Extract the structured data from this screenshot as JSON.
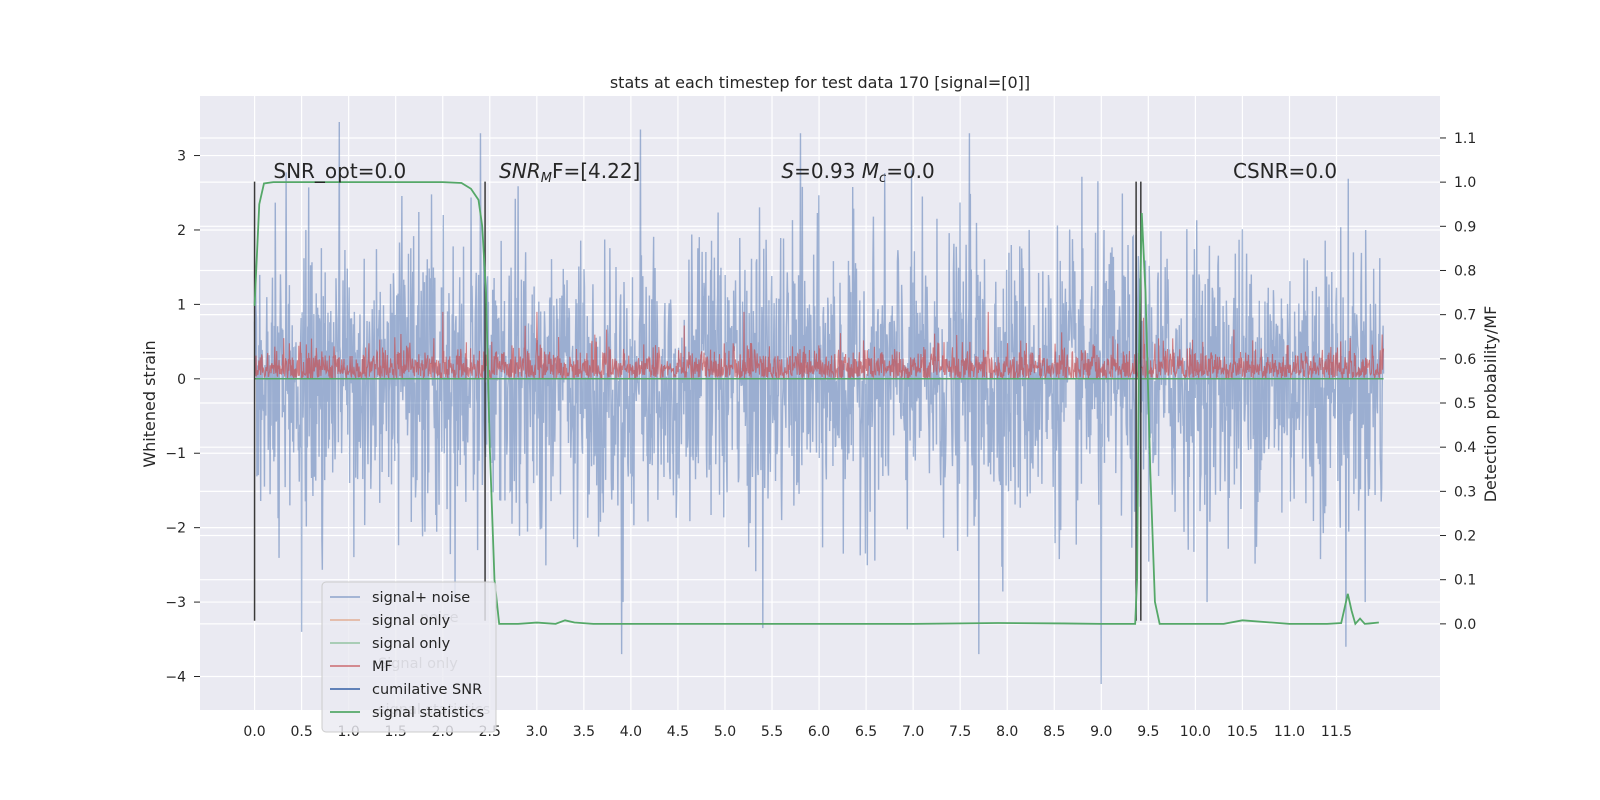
{
  "chart_data": {
    "type": "line",
    "title": "stats at each timestep for test data 170 [signal=[0]]",
    "xlabel": "",
    "ylabel": "Whitened strain",
    "y2label": "Detection probability/MF",
    "xlim": [
      -0.58,
      12.6
    ],
    "ylim": [
      -4.45,
      3.8
    ],
    "y2lim": [
      -0.195,
      1.195
    ],
    "x_ticks": [
      "0.0",
      "0.5",
      "1.0",
      "1.5",
      "2.0",
      "2.5",
      "3.0",
      "3.5",
      "4.0",
      "4.5",
      "5.0",
      "5.5",
      "6.0",
      "6.5",
      "7.0",
      "7.5",
      "8.0",
      "8.5",
      "9.0",
      "9.5",
      "10.0",
      "10.5",
      "11.0",
      "11.5"
    ],
    "y_ticks": [
      "3",
      "2",
      "1",
      "0",
      "−1",
      "−2",
      "−3",
      "−4"
    ],
    "y2_ticks": [
      "1.1",
      "1.0",
      "0.9",
      "0.8",
      "0.7",
      "0.6",
      "0.5",
      "0.4",
      "0.3",
      "0.2",
      "0.1",
      "0.0"
    ],
    "grid": true,
    "legend_position": "lower-left",
    "annotations": [
      {
        "text": "SNR_opt=0.0",
        "x": 0.2,
        "y": 2.7
      },
      {
        "text_parts": [
          "SNR",
          "M",
          "F=[4.22]"
        ],
        "x": 2.6,
        "y": 2.7
      },
      {
        "text_parts": [
          "S",
          "=0.93   ",
          "M",
          "c",
          "=0.0"
        ],
        "x": 5.6,
        "y": 2.7
      },
      {
        "text": "CSNR=0.0",
        "x": 10.4,
        "y": 2.7
      }
    ],
    "legend": [
      {
        "label": "signal+ noise",
        "color": "#4c72b0",
        "alpha": 0.5
      },
      {
        "label": "signal only",
        "color": "#dd8452",
        "alpha": 0.5
      },
      {
        "label": "signal only",
        "color": "#55a868",
        "alpha": 0.5
      },
      {
        "label": "MF",
        "color": "#c44e52",
        "alpha": 0.7
      },
      {
        "label": "cumilative SNR",
        "color": "#4c72b0",
        "alpha": 1.0
      },
      {
        "label": "signal statistics",
        "color": "#55a868",
        "alpha": 1.0
      }
    ],
    "legend_overlapped_text": [
      "noise",
      "Signal only",
      "signal statistics"
    ],
    "series": [
      {
        "name": "signal+ noise",
        "color": "#4c72b0",
        "x_range": [
          0.0,
          12.0
        ],
        "n_points": 2400,
        "envelope_typical": [
          -1.9,
          2.1
        ],
        "extremes": [
          [
            0.5,
            3.35
          ],
          [
            0.9,
            3.45
          ],
          [
            2.4,
            3.3
          ],
          [
            4.1,
            3.35
          ],
          [
            5.8,
            3.3
          ],
          [
            7.6,
            3.3
          ],
          [
            9.0,
            3.4
          ],
          [
            3.9,
            -3.7
          ],
          [
            7.7,
            -3.7
          ],
          [
            9.0,
            -4.1
          ],
          [
            11.6,
            -3.6
          ],
          [
            0.5,
            -3.4
          ],
          [
            5.4,
            -3.35
          ]
        ]
      },
      {
        "name": "MF",
        "color": "#c44e52",
        "x_range": [
          0.0,
          12.0
        ],
        "n_points": 2400,
        "envelope_typical": [
          0.0,
          0.55
        ],
        "extremes": [
          [
            2.0,
            0.9
          ],
          [
            3.0,
            0.9
          ],
          [
            5.2,
            0.9
          ],
          [
            7.8,
            0.9
          ],
          [
            9.45,
            0.82
          ]
        ]
      },
      {
        "name": "signal statistics",
        "color": "#55a868",
        "axis": "y2",
        "x": [
          0.0,
          0.05,
          0.1,
          0.2,
          0.5,
          1.0,
          1.5,
          2.0,
          2.2,
          2.3,
          2.38,
          2.42,
          2.46,
          2.5,
          2.55,
          2.6,
          2.8,
          3.0,
          3.2,
          3.3,
          3.4,
          3.6,
          4.0,
          5.0,
          6.0,
          7.0,
          7.9,
          8.6,
          9.0,
          9.36,
          9.38,
          9.4,
          9.43,
          9.47,
          9.52,
          9.57,
          9.62,
          10.0,
          10.3,
          10.5,
          11.0,
          11.4,
          11.55,
          11.62,
          11.66,
          11.7,
          11.75,
          11.8,
          11.85,
          11.95
        ],
        "y": [
          0.72,
          0.95,
          0.997,
          1.0,
          1.0,
          1.0,
          1.0,
          1.0,
          0.998,
          0.985,
          0.96,
          0.9,
          0.75,
          0.4,
          0.1,
          0.0,
          0.0,
          0.003,
          0.0,
          0.008,
          0.003,
          0.0,
          0.0,
          0.0,
          0.0,
          0.0,
          0.002,
          0.001,
          0.0,
          0.0,
          0.1,
          0.6,
          0.93,
          0.75,
          0.35,
          0.05,
          0.0,
          0.0,
          0.0,
          0.008,
          0.0,
          0.0,
          0.002,
          0.068,
          0.03,
          0.0,
          0.012,
          0.0,
          0.001,
          0.003
        ]
      },
      {
        "name": "cumilative SNR",
        "color": "#4c72b0",
        "x": [
          0.0,
          12.0
        ],
        "y": [
          0.0,
          0.0
        ]
      }
    ],
    "vertical_lines": [
      {
        "x": 0.0,
        "y_range": [
          -3.25,
          2.65
        ]
      },
      {
        "x": 2.45,
        "y_range": [
          -3.25,
          2.65
        ]
      },
      {
        "x": 9.37,
        "y_range": [
          -3.25,
          2.65
        ]
      },
      {
        "x": 9.42,
        "y_range": [
          -3.25,
          2.65
        ]
      }
    ]
  }
}
